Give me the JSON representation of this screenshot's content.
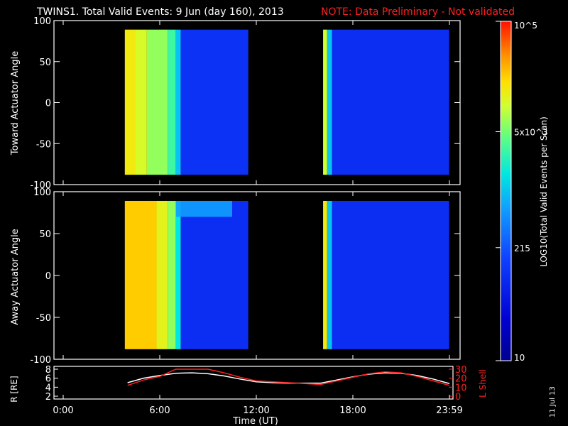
{
  "title": {
    "main": "TWINS1. Total Valid Events:  9 Jun (day 160), 2013",
    "note": "NOTE: Data Preliminary - Not validated",
    "note_color": "#ff2020"
  },
  "stamp": "11 Jul 13",
  "colorbar": {
    "label": "LOG10(Total Valid Events per Scan)",
    "tick_labels": [
      "10",
      "215",
      "5x10^3",
      "10^5"
    ],
    "tick_values": [
      10,
      215,
      5000,
      100000
    ],
    "scale": "log"
  },
  "chart_data": [
    {
      "type": "heatmap",
      "ylabel": "Toward Actuator Angle",
      "ylim": [
        -100,
        100
      ],
      "y_ticks": [
        "100",
        "50",
        "0",
        "-50",
        "-100"
      ],
      "x_range_hours": [
        0,
        24
      ],
      "segments": [
        {
          "t_start": 3.83,
          "t_end": 11.5,
          "angle_range": [
            -88,
            89
          ]
        },
        {
          "t_start": 16.15,
          "t_end": 23.98,
          "angle_range": [
            -88,
            89
          ]
        }
      ],
      "columns": [
        {
          "t": [
            3.83,
            4.5
          ],
          "level": 0.8
        },
        {
          "t": [
            4.5,
            5.2
          ],
          "level": 0.76
        },
        {
          "t": [
            5.2,
            6.5
          ],
          "level": 0.7
        },
        {
          "t": [
            6.5,
            7.0
          ],
          "level": 0.62
        },
        {
          "t": [
            7.0,
            7.3
          ],
          "level": 0.5
        },
        {
          "t": [
            7.3,
            11.5
          ],
          "level": 0.26
        },
        {
          "t": [
            16.15,
            16.4
          ],
          "level": 0.75
        },
        {
          "t": [
            16.4,
            16.7
          ],
          "level": 0.5
        },
        {
          "t": [
            16.7,
            23.98
          ],
          "level": 0.25
        }
      ],
      "grid": false
    },
    {
      "type": "heatmap",
      "ylabel": "Away Actuator Angle",
      "ylim": [
        -100,
        100
      ],
      "y_ticks": [
        "100",
        "50",
        "0",
        "-50",
        "-100"
      ],
      "x_range_hours": [
        0,
        24
      ],
      "segments": [
        {
          "t_start": 3.83,
          "t_end": 11.5,
          "angle_range": [
            -88,
            89
          ]
        },
        {
          "t_start": 16.15,
          "t_end": 23.98,
          "angle_range": [
            -88,
            89
          ]
        }
      ],
      "columns": [
        {
          "t": [
            3.83,
            5.8
          ],
          "level": 0.84
        },
        {
          "t": [
            5.8,
            6.5
          ],
          "level": 0.78
        },
        {
          "t": [
            6.5,
            7.0
          ],
          "level": 0.7
        },
        {
          "t": [
            7.0,
            7.3
          ],
          "level": 0.55
        },
        {
          "t": [
            7.3,
            11.5
          ],
          "level": 0.25
        },
        {
          "t": [
            16.15,
            16.4
          ],
          "level": 0.8
        },
        {
          "t": [
            16.4,
            16.7
          ],
          "level": 0.5
        },
        {
          "t": [
            16.7,
            23.98
          ],
          "level": 0.25
        }
      ],
      "features": [
        {
          "t": [
            7.0,
            10.5
          ],
          "angle": [
            70,
            89
          ],
          "level": 0.45
        }
      ],
      "grid": false
    },
    {
      "type": "line",
      "xlabel": "Time (UT)",
      "x_ticks": [
        "0:00",
        "6:00",
        "12:00",
        "18:00",
        "23:59"
      ],
      "x_tick_hours": [
        0,
        6,
        12,
        18,
        24
      ],
      "ylabel_left": "R [RE]",
      "ylim_left": [
        2,
        8
      ],
      "y_ticks_left": [
        "8",
        "6",
        "4",
        "2"
      ],
      "ylabel_right": "L Shell",
      "ylim_right": [
        0,
        30
      ],
      "y_ticks_right": [
        "30",
        "20",
        "10",
        "0"
      ],
      "series": [
        {
          "color": "#ffffff",
          "axis": "left",
          "x": [
            4,
            5,
            6,
            7,
            8,
            9,
            10,
            11,
            12,
            13,
            14,
            15,
            16,
            17,
            18,
            19,
            20,
            21,
            22,
            23,
            24
          ],
          "y": [
            5.0,
            6.0,
            6.6,
            7.1,
            7.2,
            7.0,
            6.5,
            5.8,
            5.2,
            5.0,
            4.9,
            4.9,
            4.9,
            5.6,
            6.3,
            6.9,
            7.2,
            7.1,
            6.6,
            5.8,
            4.8
          ]
        },
        {
          "color": "#ff2020",
          "axis": "right",
          "x": [
            4,
            5,
            6,
            7,
            8,
            9,
            10,
            11,
            12,
            13,
            14,
            15,
            16,
            17,
            18,
            19,
            20,
            21,
            22,
            23,
            24
          ],
          "y": [
            12,
            18,
            22,
            30,
            30,
            30,
            26,
            21,
            17,
            16,
            15,
            14,
            13,
            17,
            21,
            25,
            27,
            26,
            22,
            17,
            12
          ]
        }
      ]
    }
  ]
}
